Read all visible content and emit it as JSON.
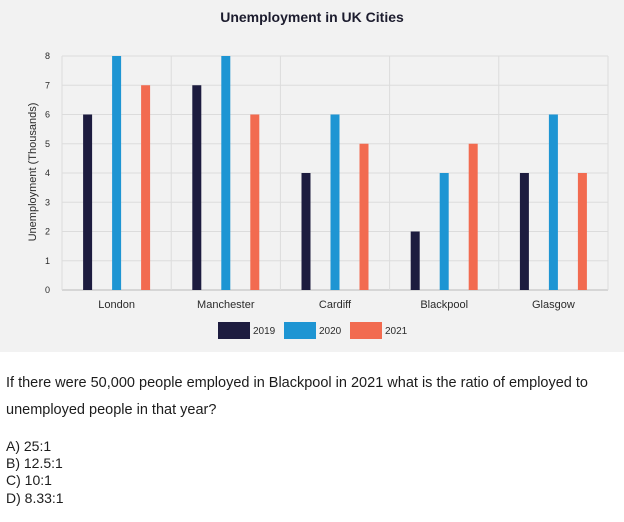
{
  "chart_data": {
    "type": "bar",
    "title": "Unemployment in UK Cities",
    "xlabel": "",
    "ylabel": "Unemployment (Thousands)",
    "ylim": [
      0,
      8
    ],
    "yticks": [
      "0",
      "1",
      "2",
      "3",
      "4",
      "5",
      "6",
      "7",
      "8"
    ],
    "categories": [
      "London",
      "Manchester",
      "Cardiff",
      "Blackpool",
      "Glasgow"
    ],
    "series": [
      {
        "name": "2019",
        "color": "#1d1c3f",
        "values": [
          6,
          7,
          4,
          2,
          4
        ]
      },
      {
        "name": "2020",
        "color": "#1e95d3",
        "values": [
          8,
          8,
          6,
          4,
          6
        ]
      },
      {
        "name": "2021",
        "color": "#f26b50",
        "values": [
          7,
          6,
          5,
          5,
          4
        ]
      }
    ],
    "legend": "bottom-center",
    "grid": true
  },
  "question": {
    "text": "If there were 50,000 people employed in Blackpool in 2021 what is the ratio of employed to unemployed people in that year?",
    "options": [
      "A) 25:1",
      "B) 12.5:1",
      "C) 10:1",
      "D) 8.33:1"
    ]
  }
}
